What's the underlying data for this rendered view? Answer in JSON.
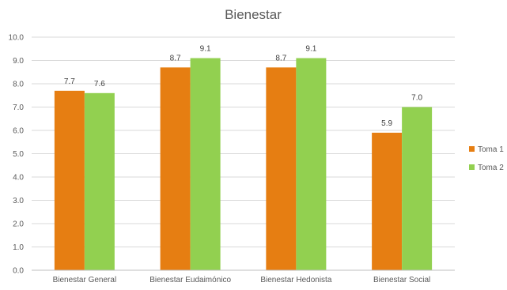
{
  "chart_data": {
    "type": "bar",
    "title": "Bienestar",
    "categories": [
      "Bienestar General",
      "Bienestar Eudaimónico",
      "Bienestar Hedonista",
      "Bienestar Social"
    ],
    "series": [
      {
        "name": "Toma 1",
        "color": "#E67E12",
        "values": [
          7.7,
          8.7,
          8.7,
          5.9
        ]
      },
      {
        "name": "Toma 2",
        "color": "#92D050",
        "values": [
          7.6,
          9.1,
          9.1,
          7.0
        ]
      }
    ],
    "ylim": [
      0,
      10
    ],
    "yticks": [
      "0.0",
      "1.0",
      "2.0",
      "3.0",
      "4.0",
      "5.0",
      "6.0",
      "7.0",
      "8.0",
      "9.0",
      "10.0"
    ],
    "data_labels": [
      [
        "7.7",
        "8.7",
        "8.7",
        "5.9"
      ],
      [
        "7.6",
        "9.1",
        "9.1",
        "7.0"
      ]
    ],
    "grid": true,
    "legend_position": "right"
  }
}
